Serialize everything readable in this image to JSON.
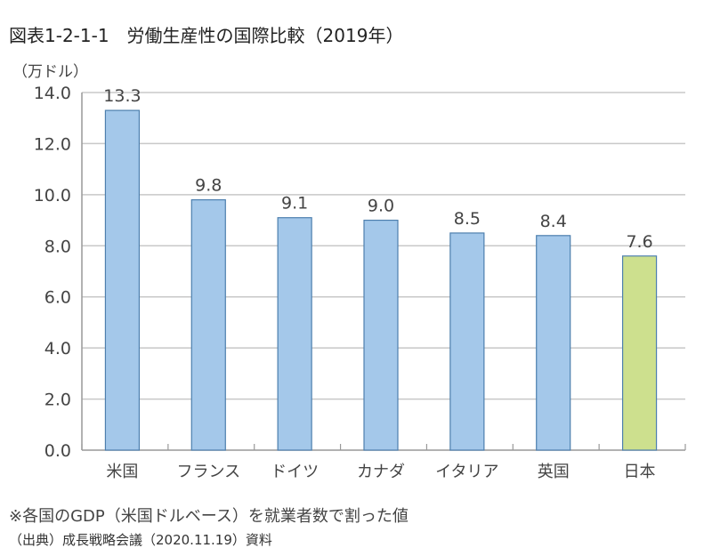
{
  "chart_data": {
    "type": "bar",
    "title": "図表1-2-1-1　労働生産性の国際比較（2019年）",
    "ylabel": "（万ドル）",
    "xlabel": "",
    "categories": [
      "米国",
      "フランス",
      "ドイツ",
      "カナダ",
      "イタリア",
      "英国",
      "日本"
    ],
    "values": [
      13.3,
      9.8,
      9.1,
      9.0,
      8.5,
      8.4,
      7.6
    ],
    "value_labels": [
      "13.3",
      "9.8",
      "9.1",
      "9.0",
      "8.5",
      "8.4",
      "7.6"
    ],
    "ylim": [
      0,
      14
    ],
    "yticks": [
      "0.0",
      "2.0",
      "4.0",
      "6.0",
      "8.0",
      "10.0",
      "12.0",
      "14.0"
    ],
    "grid": true,
    "colors": {
      "default": "#a4c8ea",
      "highlight": "#cde08e",
      "border": "#4d7fae",
      "grid": "#c8c8c8"
    },
    "highlight_index": 6
  },
  "note": "※各国のGDP（米国ドルベース）を就業者数で割った値",
  "source": "（出典）成長戦略会議（2020.11.19）資料"
}
